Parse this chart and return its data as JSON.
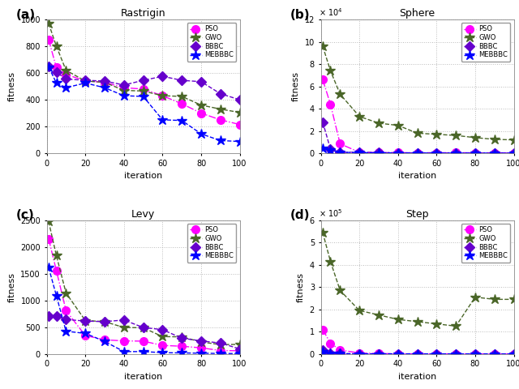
{
  "subplots": [
    {
      "label": "(a)",
      "title": "Rastrigin",
      "xlabel": "iteration",
      "ylabel": "fitness",
      "ylim": [
        0,
        1000
      ],
      "xlim": [
        0,
        100
      ],
      "yticks": [
        0,
        200,
        400,
        600,
        800,
        1000
      ],
      "xticks": [
        0,
        20,
        40,
        60,
        80,
        100
      ],
      "series": {
        "PSO": {
          "x": [
            1,
            5,
            10,
            20,
            30,
            40,
            50,
            60,
            70,
            80,
            90,
            100
          ],
          "y": [
            850,
            640,
            590,
            540,
            530,
            490,
            480,
            430,
            370,
            300,
            250,
            215
          ],
          "color": "#ff00ff",
          "ls": "-.",
          "marker": "o",
          "ms": 7
        },
        "GWO": {
          "x": [
            1,
            5,
            10,
            20,
            30,
            40,
            50,
            60,
            70,
            80,
            90,
            100
          ],
          "y": [
            970,
            800,
            620,
            540,
            530,
            470,
            465,
            430,
            425,
            360,
            330,
            305
          ],
          "color": "#4a6628",
          "ls": "--",
          "marker": "*",
          "ms": 9
        },
        "BBBC": {
          "x": [
            1,
            5,
            10,
            20,
            30,
            40,
            50,
            60,
            70,
            80,
            90,
            100
          ],
          "y": [
            650,
            605,
            555,
            545,
            540,
            510,
            545,
            575,
            545,
            535,
            445,
            400
          ],
          "color": "#6600cc",
          "ls": "--",
          "marker": "D",
          "ms": 6
        },
        "MEBBBC": {
          "x": [
            1,
            5,
            10,
            20,
            30,
            40,
            50,
            60,
            70,
            80,
            90,
            100
          ],
          "y": [
            645,
            525,
            490,
            525,
            490,
            430,
            425,
            250,
            245,
            145,
            95,
            88
          ],
          "color": "#0000ff",
          "ls": "--",
          "marker": "*",
          "ms": 9
        }
      }
    },
    {
      "label": "(b)",
      "title": "Sphere",
      "xlabel": "iteration",
      "ylabel": "fitness",
      "ylim": [
        0,
        120000
      ],
      "xlim": [
        0,
        100
      ],
      "yticks": [
        0,
        20000,
        40000,
        60000,
        80000,
        100000,
        120000
      ],
      "ytick_labels": [
        "0",
        "2",
        "4",
        "6",
        "8",
        "10",
        "12"
      ],
      "scale_label": "× 10$^4$",
      "xticks": [
        0,
        20,
        40,
        60,
        80,
        100
      ],
      "series": {
        "PSO": {
          "x": [
            1,
            5,
            10,
            20,
            30,
            40,
            50,
            60,
            70,
            80,
            90,
            100
          ],
          "y": [
            66000,
            44000,
            8500,
            900,
            600,
            500,
            400,
            450,
            500,
            400,
            400,
            400
          ],
          "color": "#ff00ff",
          "ls": "-.",
          "marker": "o",
          "ms": 7
        },
        "GWO": {
          "x": [
            1,
            5,
            10,
            20,
            30,
            40,
            50,
            60,
            70,
            80,
            90,
            100
          ],
          "y": [
            96000,
            74000,
            53000,
            33000,
            27000,
            25000,
            18000,
            17000,
            16000,
            14000,
            12500,
            12000
          ],
          "color": "#4a6628",
          "ls": "--",
          "marker": "*",
          "ms": 9
        },
        "BBBC": {
          "x": [
            1,
            5,
            10,
            20,
            30,
            40,
            50,
            60,
            70,
            80,
            90,
            100
          ],
          "y": [
            28000,
            3800,
            900,
            900,
            600,
            400,
            350,
            350,
            250,
            250,
            250,
            180
          ],
          "color": "#6600cc",
          "ls": "--",
          "marker": "D",
          "ms": 6
        },
        "MEBBBC": {
          "x": [
            1,
            5,
            10,
            20,
            30,
            40,
            50,
            60,
            70,
            80,
            90,
            100
          ],
          "y": [
            4800,
            2800,
            900,
            600,
            450,
            280,
            270,
            180,
            180,
            180,
            130,
            80
          ],
          "color": "#0000ff",
          "ls": "--",
          "marker": "*",
          "ms": 9
        }
      }
    },
    {
      "label": "(c)",
      "title": "Levy",
      "xlabel": "iteration",
      "ylabel": "fitness",
      "ylim": [
        0,
        2500
      ],
      "xlim": [
        0,
        100
      ],
      "yticks": [
        0,
        500,
        1000,
        1500,
        2000,
        2500
      ],
      "xticks": [
        0,
        20,
        40,
        60,
        80,
        100
      ],
      "series": {
        "PSO": {
          "x": [
            1,
            5,
            10,
            20,
            30,
            40,
            50,
            60,
            70,
            80,
            90,
            100
          ],
          "y": [
            2150,
            1560,
            810,
            345,
            265,
            245,
            240,
            160,
            145,
            115,
            65,
            60
          ],
          "color": "#ff00ff",
          "ls": "-.",
          "marker": "o",
          "ms": 7
        },
        "GWO": {
          "x": [
            1,
            5,
            10,
            20,
            30,
            40,
            50,
            60,
            70,
            80,
            90,
            100
          ],
          "y": [
            2475,
            1840,
            1140,
            625,
            605,
            495,
            490,
            325,
            320,
            225,
            175,
            180
          ],
          "color": "#4a6628",
          "ls": "--",
          "marker": "*",
          "ms": 9
        },
        "BBBC": {
          "x": [
            1,
            5,
            10,
            20,
            30,
            40,
            50,
            60,
            70,
            80,
            90,
            100
          ],
          "y": [
            715,
            705,
            645,
            615,
            605,
            635,
            495,
            455,
            295,
            245,
            205,
            95
          ],
          "color": "#6600cc",
          "ls": "--",
          "marker": "D",
          "ms": 6
        },
        "MEBBBC": {
          "x": [
            1,
            5,
            10,
            20,
            30,
            40,
            50,
            60,
            70,
            80,
            90,
            100
          ],
          "y": [
            1615,
            1090,
            425,
            385,
            235,
            45,
            45,
            25,
            20,
            15,
            10,
            8
          ],
          "color": "#0000ff",
          "ls": "--",
          "marker": "*",
          "ms": 9
        }
      }
    },
    {
      "label": "(d)",
      "title": "Step",
      "xlabel": "iteration",
      "ylabel": "fitness",
      "ylim": [
        0,
        600000
      ],
      "xlim": [
        0,
        100
      ],
      "yticks": [
        0,
        100000,
        200000,
        300000,
        400000,
        500000,
        600000
      ],
      "ytick_labels": [
        "0",
        "1",
        "2",
        "3",
        "4",
        "5",
        "6"
      ],
      "scale_label": "× 10$^5$",
      "xticks": [
        0,
        20,
        40,
        60,
        80,
        100
      ],
      "series": {
        "PSO": {
          "x": [
            1,
            5,
            10,
            20,
            30,
            40,
            50,
            60,
            70,
            80,
            90,
            100
          ],
          "y": [
            110000,
            48000,
            18000,
            4500,
            1800,
            900,
            700,
            550,
            450,
            350,
            250,
            180
          ],
          "color": "#ff00ff",
          "ls": "-.",
          "marker": "o",
          "ms": 7
        },
        "GWO": {
          "x": [
            1,
            5,
            10,
            20,
            30,
            40,
            50,
            60,
            70,
            80,
            90,
            100
          ],
          "y": [
            545000,
            415000,
            285000,
            195000,
            175000,
            155000,
            145000,
            135000,
            125000,
            255000,
            245000,
            245000
          ],
          "color": "#4a6628",
          "ls": "--",
          "marker": "*",
          "ms": 9
        },
        "BBBC": {
          "x": [
            1,
            5,
            10,
            20,
            30,
            40,
            50,
            60,
            70,
            80,
            90,
            100
          ],
          "y": [
            18000,
            4500,
            1800,
            900,
            700,
            600,
            500,
            400,
            350,
            250,
            180,
            80
          ],
          "color": "#6600cc",
          "ls": "--",
          "marker": "D",
          "ms": 6
        },
        "MEBBBC": {
          "x": [
            1,
            5,
            10,
            20,
            30,
            40,
            50,
            60,
            70,
            80,
            90,
            100
          ],
          "y": [
            9000,
            3500,
            1200,
            700,
            500,
            400,
            350,
            250,
            180,
            120,
            80,
            40
          ],
          "color": "#0000ff",
          "ls": "--",
          "marker": "*",
          "ms": 9
        }
      }
    }
  ],
  "bg_color": "#ffffff",
  "grid_color": "#aaaaaa",
  "font_size": 8
}
